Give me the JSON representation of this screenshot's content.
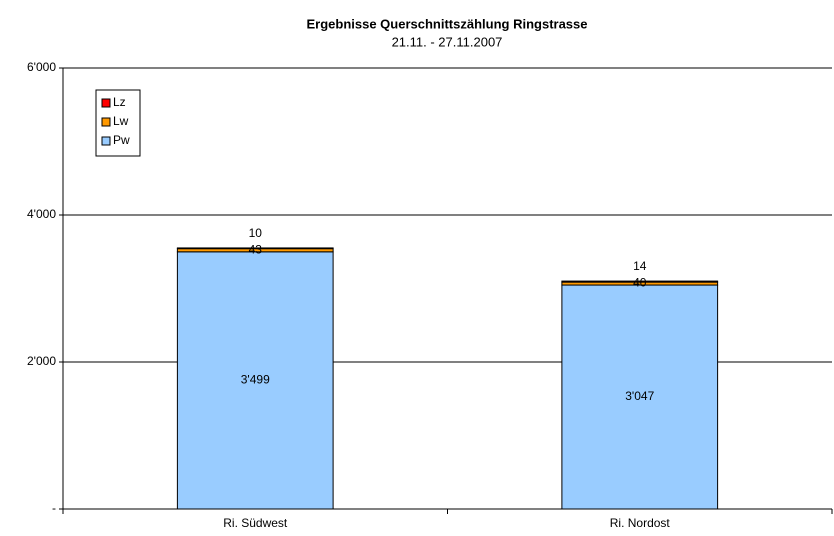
{
  "chart_data": {
    "type": "stacked_bar",
    "title": "Ergebnisse Querschnittszählung Ringstrasse",
    "subtitle": "21.11. - 27.11.2007",
    "categories": [
      "Ri. Südwest",
      "Ri. Nordost"
    ],
    "series": [
      {
        "name": "Pw",
        "color": "#99ccff",
        "values": [
          3499,
          3047
        ],
        "value_labels": [
          "3'499",
          "3'047"
        ]
      },
      {
        "name": "Lw",
        "color": "#ff9900",
        "values": [
          43,
          40
        ]
      },
      {
        "name": "Lz",
        "color": "#ff0000",
        "values": [
          10,
          14
        ]
      }
    ],
    "ylim": [
      0,
      6000
    ],
    "yticks": [
      {
        "value": 0,
        "label": "-"
      },
      {
        "value": 2000,
        "label": "2'000"
      },
      {
        "value": 4000,
        "label": "4'000"
      },
      {
        "value": 6000,
        "label": "6'000"
      }
    ],
    "grid": true,
    "legend": "top-left"
  }
}
